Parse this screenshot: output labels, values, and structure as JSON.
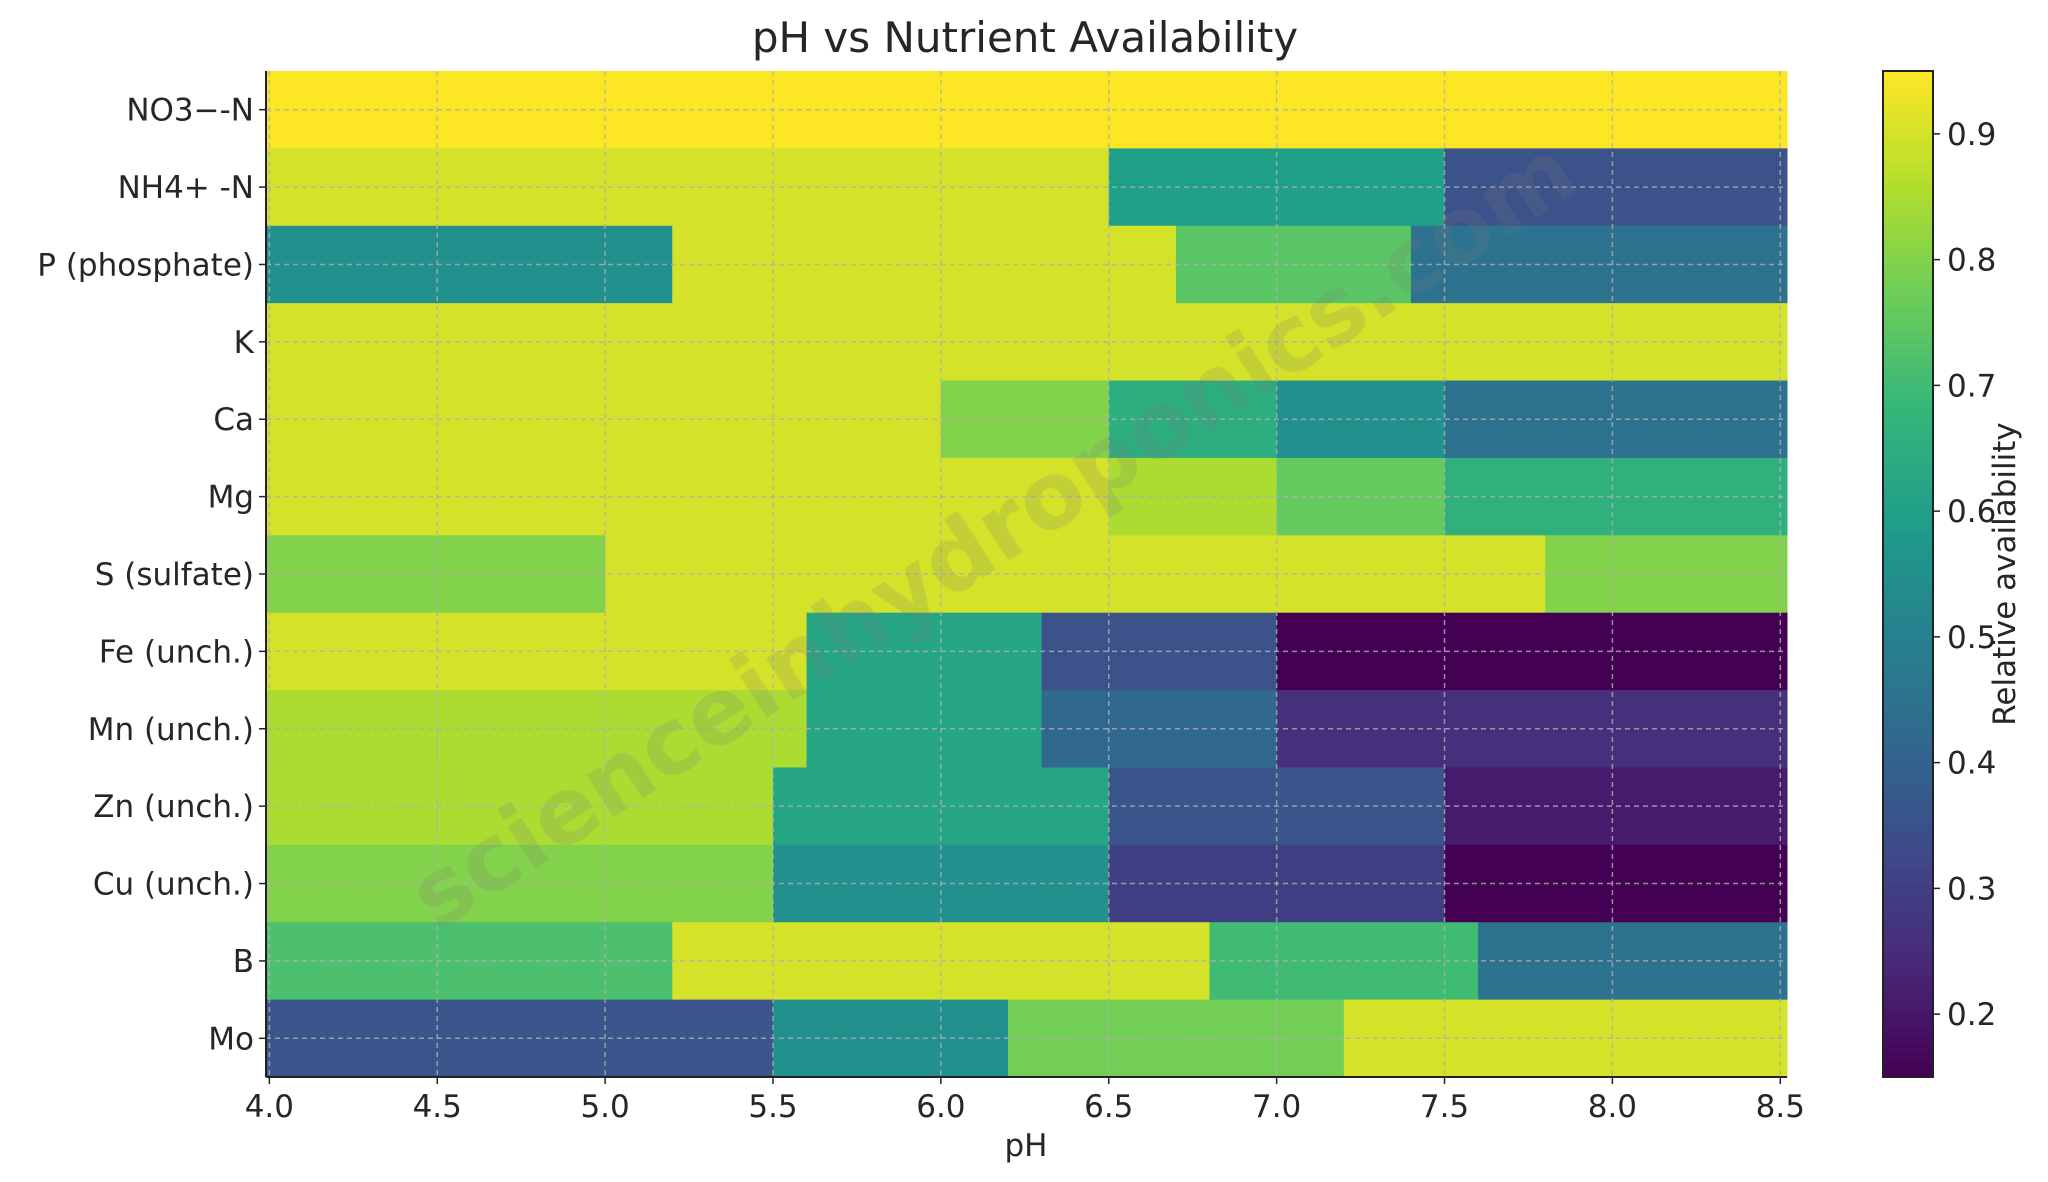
{
  "chart_data": {
    "type": "heatmap",
    "title": "pH vs Nutrient Availability",
    "xlabel": "pH",
    "ylabel": "",
    "xlim": [
      3.99,
      8.52
    ],
    "xticks": [
      4.0,
      4.5,
      5.0,
      5.5,
      6.0,
      6.5,
      7.0,
      7.5,
      8.0,
      8.5
    ],
    "xtick_labels": [
      "4.0",
      "4.5",
      "5.0",
      "5.5",
      "6.0",
      "6.5",
      "7.0",
      "7.5",
      "8.0",
      "8.5"
    ],
    "grid": true,
    "colormap": "viridis",
    "colorbar": {
      "label": "Relative availability",
      "range": [
        0.15,
        0.95
      ],
      "ticks": [
        0.2,
        0.3,
        0.4,
        0.5,
        0.6,
        0.7,
        0.8,
        0.9
      ],
      "tick_labels": [
        "0.2",
        "0.3",
        "0.4",
        "0.5",
        "0.6",
        "0.7",
        "0.8",
        "0.9"
      ]
    },
    "rows": [
      {
        "label": "NO3−-N",
        "segments": [
          {
            "from": 3.99,
            "to": 8.52,
            "value": 0.95
          }
        ]
      },
      {
        "label": "NH4+ -N",
        "segments": [
          {
            "from": 3.99,
            "to": 6.5,
            "value": 0.9
          },
          {
            "from": 6.5,
            "to": 7.5,
            "value": 0.6
          },
          {
            "from": 7.5,
            "to": 8.52,
            "value": 0.35
          }
        ]
      },
      {
        "label": "P (phosphate)",
        "segments": [
          {
            "from": 3.99,
            "to": 5.2,
            "value": 0.55
          },
          {
            "from": 5.2,
            "to": 6.7,
            "value": 0.9
          },
          {
            "from": 6.7,
            "to": 7.4,
            "value": 0.74
          },
          {
            "from": 7.4,
            "to": 8.52,
            "value": 0.45
          }
        ]
      },
      {
        "label": "K",
        "segments": [
          {
            "from": 3.99,
            "to": 8.52,
            "value": 0.9
          }
        ]
      },
      {
        "label": "Ca",
        "segments": [
          {
            "from": 3.99,
            "to": 6.0,
            "value": 0.9
          },
          {
            "from": 6.0,
            "to": 6.5,
            "value": 0.8
          },
          {
            "from": 6.5,
            "to": 7.0,
            "value": 0.65
          },
          {
            "from": 7.0,
            "to": 7.5,
            "value": 0.55
          },
          {
            "from": 7.5,
            "to": 8.52,
            "value": 0.45
          }
        ]
      },
      {
        "label": "Mg",
        "segments": [
          {
            "from": 3.99,
            "to": 6.5,
            "value": 0.9
          },
          {
            "from": 6.5,
            "to": 7.0,
            "value": 0.85
          },
          {
            "from": 7.0,
            "to": 7.5,
            "value": 0.76
          },
          {
            "from": 7.5,
            "to": 8.52,
            "value": 0.66
          }
        ]
      },
      {
        "label": "S (sulfate)",
        "segments": [
          {
            "from": 3.99,
            "to": 5.0,
            "value": 0.8
          },
          {
            "from": 5.0,
            "to": 7.8,
            "value": 0.9
          },
          {
            "from": 7.8,
            "to": 8.52,
            "value": 0.8
          }
        ]
      },
      {
        "label": "Fe (unch.)",
        "segments": [
          {
            "from": 3.99,
            "to": 5.6,
            "value": 0.9
          },
          {
            "from": 5.6,
            "to": 6.3,
            "value": 0.62
          },
          {
            "from": 6.3,
            "to": 7.0,
            "value": 0.35
          },
          {
            "from": 7.0,
            "to": 8.52,
            "value": 0.15
          }
        ]
      },
      {
        "label": "Mn (unch.)",
        "segments": [
          {
            "from": 3.99,
            "to": 5.6,
            "value": 0.85
          },
          {
            "from": 5.6,
            "to": 6.3,
            "value": 0.62
          },
          {
            "from": 6.3,
            "to": 7.0,
            "value": 0.42
          },
          {
            "from": 7.0,
            "to": 8.52,
            "value": 0.26
          }
        ]
      },
      {
        "label": "Zn (unch.)",
        "segments": [
          {
            "from": 3.99,
            "to": 5.5,
            "value": 0.85
          },
          {
            "from": 5.5,
            "to": 6.5,
            "value": 0.62
          },
          {
            "from": 6.5,
            "to": 7.5,
            "value": 0.36
          },
          {
            "from": 7.5,
            "to": 8.52,
            "value": 0.21
          }
        ]
      },
      {
        "label": "Cu (unch.)",
        "segments": [
          {
            "from": 3.99,
            "to": 5.5,
            "value": 0.8
          },
          {
            "from": 5.5,
            "to": 6.5,
            "value": 0.55
          },
          {
            "from": 6.5,
            "to": 7.5,
            "value": 0.3
          },
          {
            "from": 7.5,
            "to": 8.52,
            "value": 0.15
          }
        ]
      },
      {
        "label": "B",
        "segments": [
          {
            "from": 3.99,
            "to": 5.2,
            "value": 0.72
          },
          {
            "from": 5.2,
            "to": 6.8,
            "value": 0.9
          },
          {
            "from": 6.8,
            "to": 7.6,
            "value": 0.7
          },
          {
            "from": 7.6,
            "to": 8.52,
            "value": 0.45
          }
        ]
      },
      {
        "label": "Mo",
        "segments": [
          {
            "from": 3.99,
            "to": 5.5,
            "value": 0.36
          },
          {
            "from": 5.5,
            "to": 6.2,
            "value": 0.55
          },
          {
            "from": 6.2,
            "to": 7.2,
            "value": 0.78
          },
          {
            "from": 7.2,
            "to": 8.52,
            "value": 0.9
          }
        ]
      }
    ],
    "watermark": "scienceinhydroponics.com"
  }
}
